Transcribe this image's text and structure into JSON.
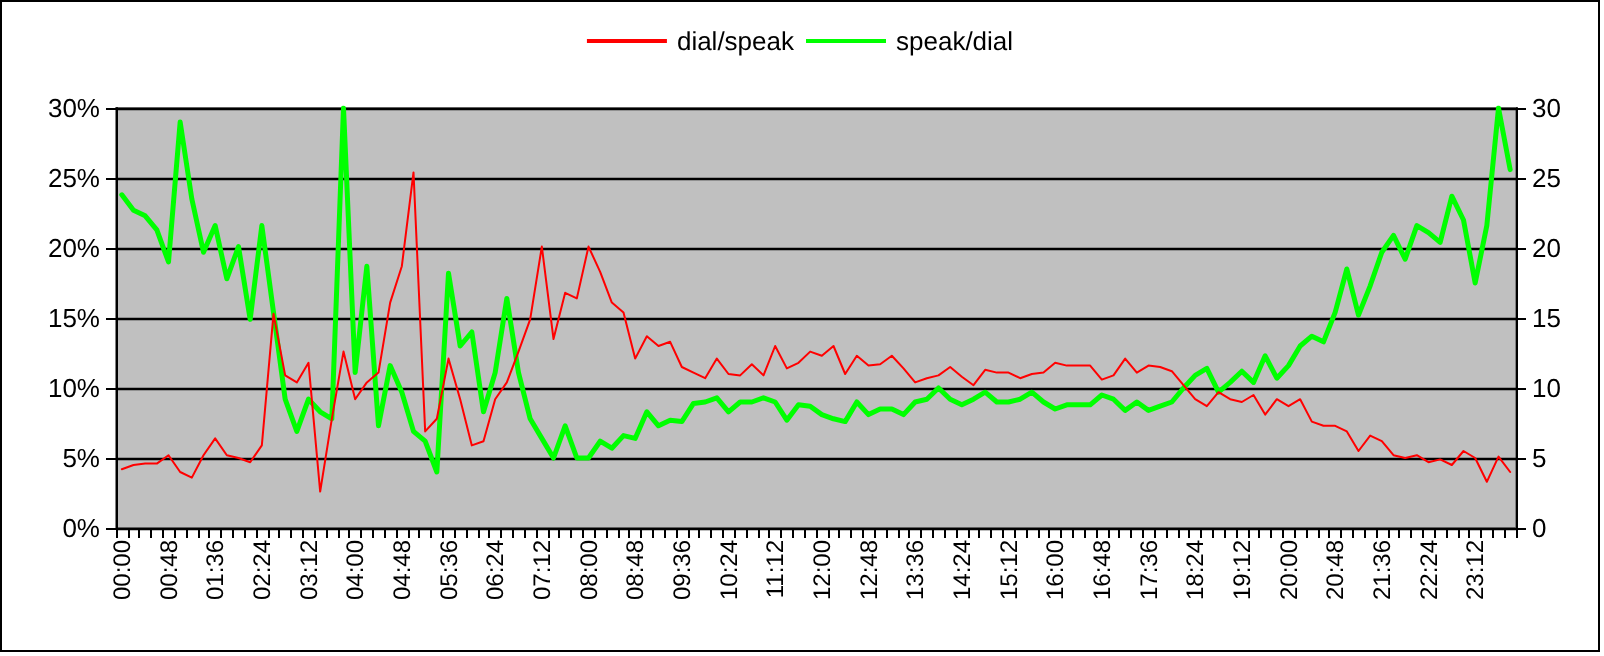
{
  "chart_data": {
    "type": "line",
    "categories": [
      "00:00",
      null,
      null,
      null,
      "00:48",
      null,
      null,
      null,
      "01:36",
      null,
      null,
      null,
      "02:24",
      null,
      null,
      null,
      "03:12",
      null,
      null,
      null,
      "04:00",
      null,
      null,
      null,
      "04:48",
      null,
      null,
      null,
      "05:36",
      null,
      null,
      null,
      "06:24",
      null,
      null,
      null,
      "07:12",
      null,
      null,
      null,
      "08:00",
      null,
      null,
      null,
      "08:48",
      null,
      null,
      null,
      "09:36",
      null,
      null,
      null,
      "10:24",
      null,
      null,
      null,
      "11:12",
      null,
      null,
      null,
      "12:00",
      null,
      null,
      null,
      "12:48",
      null,
      null,
      null,
      "13:36",
      null,
      null,
      null,
      "14:24",
      null,
      null,
      null,
      "15:12",
      null,
      null,
      null,
      "16:00",
      null,
      null,
      null,
      "16:48",
      null,
      null,
      null,
      "17:36",
      null,
      null,
      null,
      "18:24",
      null,
      null,
      null,
      "19:12",
      null,
      null,
      null,
      "20:00",
      null,
      null,
      null,
      "20:48",
      null,
      null,
      null,
      "21:36",
      null,
      null,
      null,
      "22:24",
      null,
      null,
      null,
      "23:12",
      null,
      null,
      null
    ],
    "series": [
      {
        "name": "dial/speak",
        "color": "#ff0000",
        "values": [
          4.2,
          4.5,
          4.6,
          4.6,
          5.2,
          4.0,
          3.6,
          5.2,
          6.4,
          5.2,
          5.0,
          4.7,
          5.9,
          15.3,
          10.9,
          10.4,
          11.8,
          2.6,
          7.8,
          12.6,
          9.2,
          10.4,
          11.1,
          16.1,
          18.7,
          25.4,
          6.9,
          7.8,
          12.1,
          9.2,
          5.9,
          6.2,
          9.2,
          10.4,
          12.6,
          14.9,
          20.1,
          13.5,
          16.8,
          16.4,
          20.1,
          18.3,
          16.1,
          15.4,
          12.1,
          13.7,
          13.0,
          13.3,
          11.5,
          11.1,
          10.7,
          12.1,
          11.0,
          10.9,
          11.7,
          10.9,
          13.0,
          11.4,
          11.8,
          12.6,
          12.3,
          13.0,
          11.0,
          12.3,
          11.6,
          11.7,
          12.3,
          11.4,
          10.4,
          10.7,
          10.9,
          11.5,
          10.8,
          10.2,
          11.3,
          11.1,
          11.1,
          10.7,
          11.0,
          11.1,
          11.8,
          11.6,
          11.6,
          11.6,
          10.6,
          10.9,
          12.1,
          11.1,
          11.6,
          11.5,
          11.2,
          10.2,
          9.2,
          8.7,
          9.7,
          9.2,
          9.0,
          9.5,
          8.1,
          9.2,
          8.7,
          9.2,
          7.6,
          7.3,
          7.3,
          6.9,
          5.5,
          6.6,
          6.2,
          5.2,
          5.0,
          5.2,
          4.7,
          4.9,
          4.5,
          5.5,
          5.0,
          3.3,
          5.1,
          4.0
        ]
      },
      {
        "name": "speak/dial",
        "color": "#00ff00",
        "axis": "y2",
        "values": [
          23.8,
          22.7,
          22.3,
          21.3,
          19.0,
          29.0,
          23.5,
          19.7,
          21.6,
          17.8,
          20.1,
          14.9,
          21.6,
          15.4,
          9.2,
          6.9,
          9.2,
          8.3,
          7.8,
          30.0,
          11.1,
          18.7,
          7.3,
          11.6,
          9.7,
          6.9,
          6.2,
          4.0,
          18.2,
          13.0,
          14.0,
          8.3,
          11.1,
          16.4,
          11.1,
          7.8,
          6.4,
          5.0,
          7.3,
          5.0,
          5.0,
          6.2,
          5.7,
          6.6,
          6.4,
          8.3,
          7.3,
          7.7,
          7.6,
          8.9,
          9.0,
          9.3,
          8.3,
          9.0,
          9.0,
          9.3,
          9.0,
          7.7,
          8.8,
          8.7,
          8.1,
          7.8,
          7.6,
          9.0,
          8.1,
          8.5,
          8.5,
          8.1,
          9.0,
          9.2,
          10.0,
          9.2,
          8.8,
          9.2,
          9.7,
          9.0,
          9.0,
          9.2,
          9.7,
          9.0,
          8.5,
          8.8,
          8.8,
          8.8,
          9.5,
          9.2,
          8.4,
          9.0,
          8.4,
          8.7,
          9.0,
          10.0,
          10.9,
          11.4,
          9.7,
          10.4,
          11.2,
          10.4,
          12.3,
          10.7,
          11.6,
          13.0,
          13.7,
          13.3,
          15.4,
          18.5,
          15.2,
          17.3,
          19.7,
          20.9,
          19.2,
          21.6,
          21.1,
          20.4,
          23.7,
          22.0,
          17.5,
          21.6,
          30.0,
          25.6
        ]
      }
    ],
    "ylim": [
      0,
      30
    ],
    "yticks": [
      {
        "value": 0,
        "label": "0%"
      },
      {
        "value": 5,
        "label": "5%"
      },
      {
        "value": 10,
        "label": "10%"
      },
      {
        "value": 15,
        "label": "15%"
      },
      {
        "value": 20,
        "label": "20%"
      },
      {
        "value": 25,
        "label": "25%"
      },
      {
        "value": 30,
        "label": "30%"
      }
    ],
    "y2lim": [
      0,
      30
    ],
    "y2ticks": [
      0,
      5,
      10,
      15,
      20,
      25,
      30
    ],
    "grid": "y",
    "legend": "top",
    "marker": "none",
    "line_style": "solid"
  }
}
